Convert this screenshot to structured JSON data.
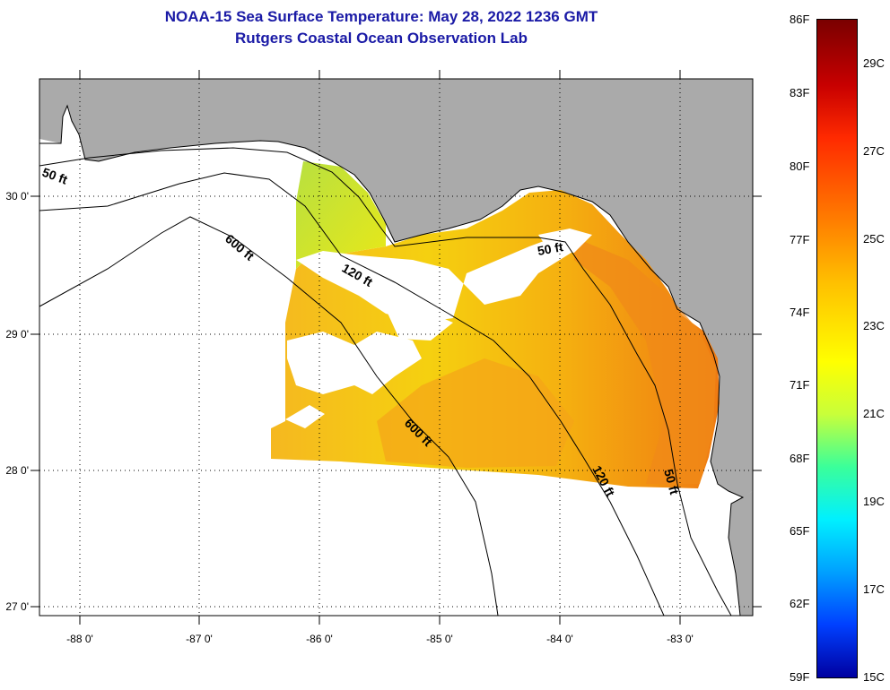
{
  "title": {
    "line1": "NOAA-15 Sea Surface Temperature:  May 28, 2022 1236 GMT",
    "line2": "Rutgers Coastal Ocean Observation Lab"
  },
  "map": {
    "lon_labels": [
      "-88 0'",
      "-87 0'",
      "-86 0'",
      "-85 0'",
      "-84 0'",
      "-83 0'"
    ],
    "lat_labels": [
      "30 0'",
      "29 0'",
      "28 0'",
      "27 0'"
    ],
    "contour_labels": [
      "50 ft",
      "600 ft",
      "120 ft",
      "50 ft",
      "600 ft",
      "120 ft",
      "50 ft"
    ],
    "colors": {
      "land": "#aaaaaa",
      "cloud_nodata": "#ffffff",
      "sst_warm": "#f08a10",
      "sst_mid": "#f5c810",
      "sst_cool": "#b8e040"
    }
  },
  "colorbar": {
    "fahrenheit": [
      "86F",
      "83F",
      "80F",
      "77F",
      "74F",
      "71F",
      "68F",
      "65F",
      "62F",
      "59F"
    ],
    "celsius": [
      "29C",
      "27C",
      "25C",
      "23C",
      "21C",
      "19C",
      "17C",
      "15C"
    ]
  }
}
